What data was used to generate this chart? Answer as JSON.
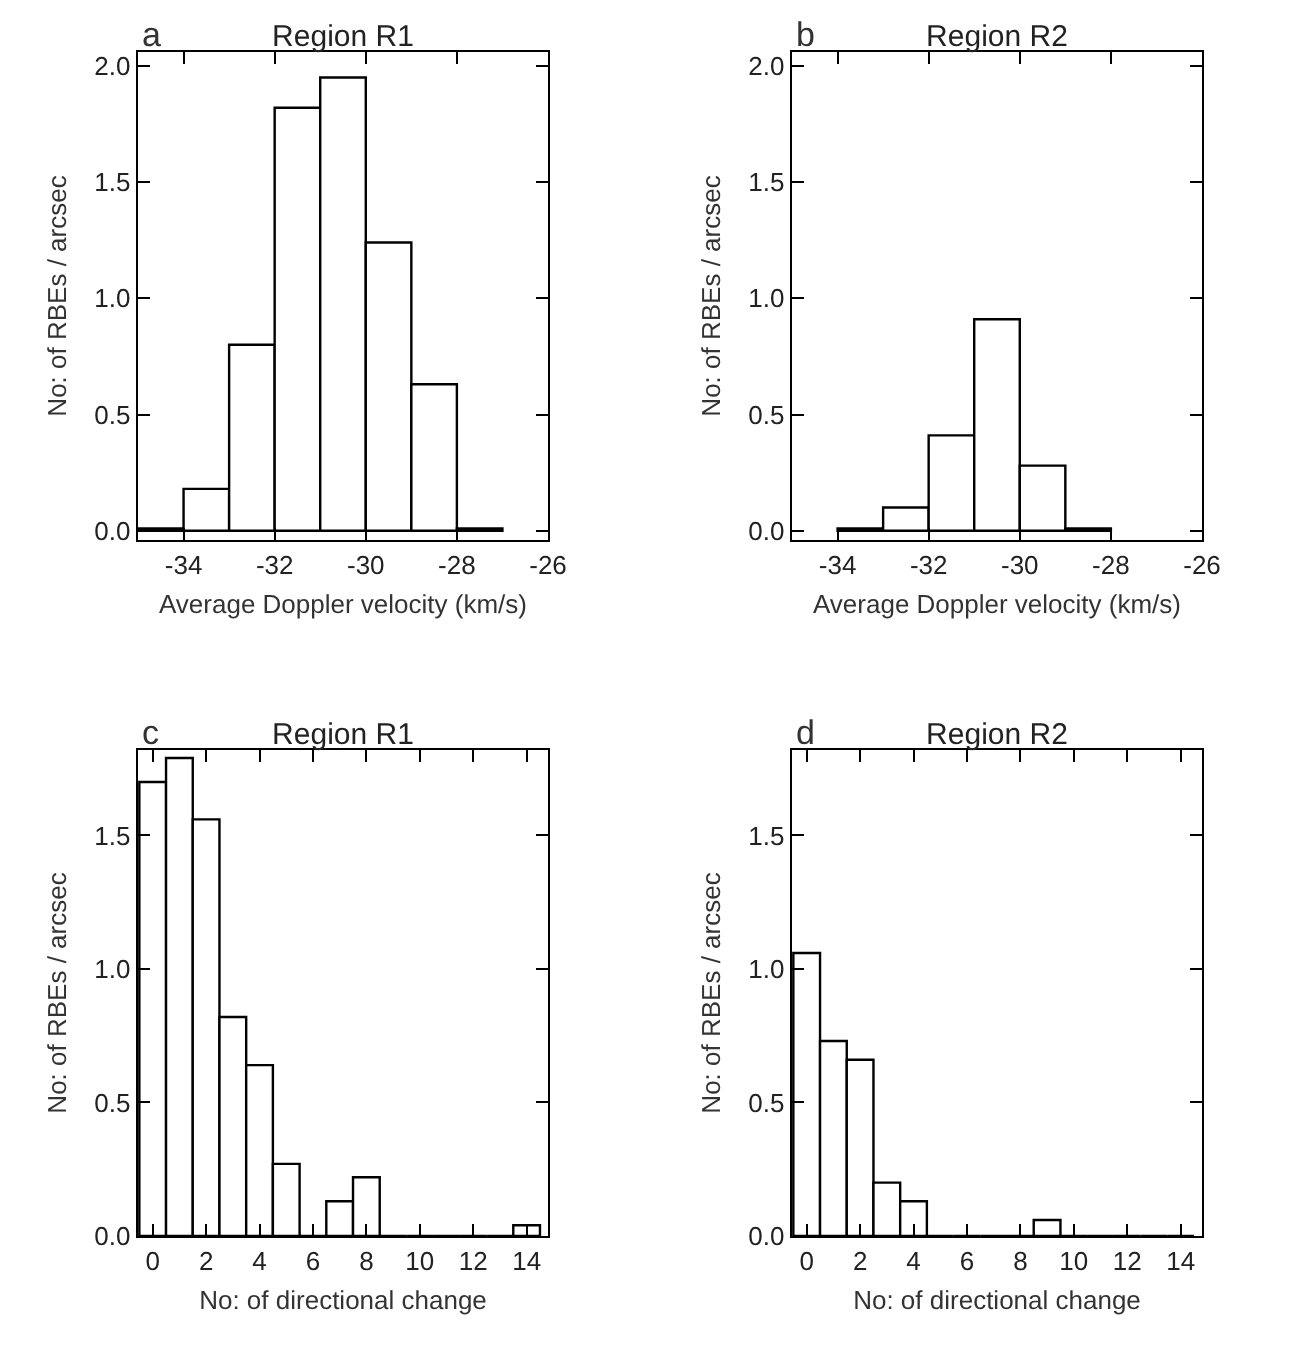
{
  "chart_data": [
    {
      "type": "histogram",
      "title": "Region R1",
      "annotations": [
        "a"
      ],
      "xlabel": "Average Doppler velocity (km/s)",
      "ylabel": "No: of RBEs / arcsec",
      "color": "#ffffff",
      "bins": [
        -35,
        -34,
        -33,
        -32,
        -31,
        -30,
        -29,
        -28,
        -27
      ],
      "values": [
        0.01,
        0.18,
        0.8,
        1.82,
        1.95,
        1.24,
        0.63,
        0.01
      ],
      "xlim": [
        -35,
        -26
      ],
      "xticks": [
        -34,
        -32,
        -30,
        -28,
        -26
      ],
      "ylim": [
        -0.04,
        2.06
      ],
      "yticks": [
        {
          "value": 0,
          "label": "0.0"
        },
        {
          "value": 0.5,
          "label": "0.5"
        },
        {
          "value": 1,
          "label": "1.0"
        },
        {
          "value": 1.5,
          "label": "1.5"
        },
        {
          "value": 2,
          "label": "2.0"
        }
      ],
      "grid": false,
      "legend": false
    },
    {
      "type": "histogram",
      "title": "Region R2",
      "annotations": [
        "b"
      ],
      "xlabel": "Average Doppler velocity (km/s)",
      "ylabel": "No: of RBEs / arcsec",
      "color": "#ffffff",
      "bins": [
        -34,
        -33,
        -32,
        -31,
        -30,
        -29,
        -28
      ],
      "values": [
        0.01,
        0.1,
        0.41,
        0.91,
        0.28,
        0.01
      ],
      "xlim": [
        -35,
        -26
      ],
      "xticks": [
        -34,
        -32,
        -30,
        -28,
        -26
      ],
      "ylim": [
        -0.04,
        2.06
      ],
      "yticks": [
        {
          "value": 0,
          "label": "0.0"
        },
        {
          "value": 0.5,
          "label": "0.5"
        },
        {
          "value": 1,
          "label": "1.0"
        },
        {
          "value": 1.5,
          "label": "1.5"
        },
        {
          "value": 2,
          "label": "2.0"
        }
      ],
      "grid": false,
      "legend": false
    },
    {
      "type": "histogram",
      "title": "Region R1",
      "annotations": [
        "c"
      ],
      "xlabel": "No: of directional change",
      "ylabel": "No: of RBEs / arcsec",
      "color": "#ffffff",
      "bins": [
        -0.5,
        0.5,
        1.5,
        2.5,
        3.5,
        4.5,
        5.5,
        6.5,
        7.5,
        8.5,
        9.5,
        10.5,
        11.5,
        12.5,
        13.5,
        14.5
      ],
      "values": [
        1.7,
        1.79,
        1.56,
        0.82,
        0.64,
        0.27,
        0,
        0.13,
        0.22,
        0,
        0,
        0,
        0,
        0,
        0.04
      ],
      "xlim": [
        -0.55,
        14.8
      ],
      "xticks": [
        0,
        2,
        4,
        6,
        8,
        10,
        12,
        14
      ],
      "ylim": [
        0,
        1.82
      ],
      "yticks": [
        {
          "value": 0,
          "label": "0.0"
        },
        {
          "value": 0.5,
          "label": "0.5"
        },
        {
          "value": 1,
          "label": "1.0"
        },
        {
          "value": 1.5,
          "label": "1.5"
        }
      ],
      "grid": false,
      "legend": false
    },
    {
      "type": "histogram",
      "title": "Region R2",
      "annotations": [
        "d"
      ],
      "xlabel": "No: of directional change",
      "ylabel": "No: of RBEs / arcsec",
      "color": "#ffffff",
      "bins": [
        -0.5,
        0.5,
        1.5,
        2.5,
        3.5,
        4.5,
        5.5,
        6.5,
        7.5,
        8.5,
        9.5,
        10.5,
        11.5,
        12.5,
        13.5,
        14.5
      ],
      "values": [
        1.06,
        0.73,
        0.66,
        0.2,
        0.13,
        0,
        0,
        0,
        0,
        0.06,
        0,
        0,
        0,
        0,
        0
      ],
      "xlim": [
        -0.55,
        14.8
      ],
      "xticks": [
        0,
        2,
        4,
        6,
        8,
        10,
        12,
        14
      ],
      "ylim": [
        0,
        1.82
      ],
      "yticks": [
        {
          "value": 0,
          "label": "0.0"
        },
        {
          "value": 0.5,
          "label": "0.5"
        },
        {
          "value": 1,
          "label": "1.0"
        },
        {
          "value": 1.5,
          "label": "1.5"
        }
      ],
      "grid": false,
      "legend": false
    }
  ]
}
